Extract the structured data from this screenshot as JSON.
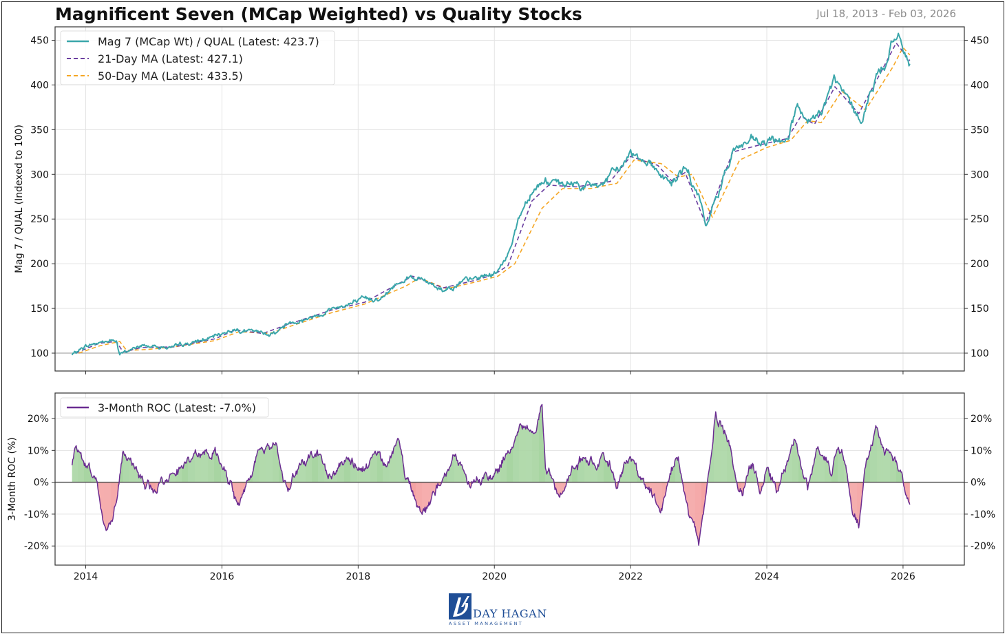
{
  "header": {
    "title": "Magnificent Seven (MCap Weighted) vs Quality Stocks",
    "date_range": "Jul 18, 2013 - Feb 03, 2026"
  },
  "logo": {
    "name": "DAY HAGAN",
    "subtitle": "ASSET MANAGEMENT"
  },
  "colors": {
    "ratio": "#3aa6aa",
    "ma21": "#6b3fa0",
    "ma50": "#f5a623",
    "roc": "#6a2c91",
    "roc_pos_fill": "#a8d5a2",
    "roc_neg_fill": "#f4a3a3",
    "grid": "#e3e3e3"
  },
  "chart_data": [
    {
      "type": "line",
      "ylabel": "Mag 7 / QUAL (Indexed to 100)",
      "ylim": [
        80,
        465
      ],
      "yticks": [
        100,
        150,
        200,
        250,
        300,
        350,
        400,
        450
      ],
      "xlim": [
        2013.55,
        2026.9
      ],
      "xticks": [
        2014,
        2016,
        2018,
        2020,
        2022,
        2024,
        2026
      ],
      "grid": true,
      "legend_position": "top-left",
      "reference_line": 100,
      "series": [
        {
          "name": "Mag 7 (MCap Wt) / QUAL (Latest: 423.7)",
          "style": "solid",
          "x": [
            2013.8,
            2014.0,
            2014.2,
            2014.45,
            2014.5,
            2014.55,
            2014.8,
            2015.0,
            2015.3,
            2015.6,
            2015.9,
            2016.15,
            2016.35,
            2016.55,
            2016.75,
            2017.0,
            2017.3,
            2017.6,
            2017.85,
            2018.1,
            2018.4,
            2018.6,
            2018.75,
            2019.0,
            2019.25,
            2019.5,
            2019.75,
            2020.0,
            2020.15,
            2020.35,
            2020.55,
            2020.75,
            2020.95,
            2021.2,
            2021.45,
            2021.7,
            2021.9,
            2022.0,
            2022.2,
            2022.4,
            2022.6,
            2022.8,
            2023.0,
            2023.1,
            2023.3,
            2023.5,
            2023.7,
            2023.9,
            2024.1,
            2024.3,
            2024.45,
            2024.6,
            2024.8,
            2025.0,
            2025.15,
            2025.35,
            2025.55,
            2025.75,
            2025.85,
            2026.0,
            2026.1
          ],
          "y": [
            98,
            108,
            112,
            114,
            98,
            100,
            108,
            108,
            106,
            112,
            118,
            127,
            125,
            122,
            122,
            135,
            140,
            150,
            155,
            158,
            165,
            180,
            188,
            180,
            172,
            178,
            183,
            190,
            200,
            250,
            285,
            295,
            285,
            290,
            285,
            295,
            312,
            325,
            320,
            305,
            290,
            305,
            275,
            240,
            280,
            330,
            335,
            332,
            335,
            342,
            375,
            350,
            368,
            405,
            385,
            360,
            395,
            430,
            455,
            440,
            423.7
          ]
        },
        {
          "name": "21-Day MA (Latest: 427.1)",
          "style": "dashed",
          "x": [
            2013.85,
            2014.2,
            2014.45,
            2014.55,
            2014.8,
            2015.3,
            2015.9,
            2016.2,
            2016.6,
            2017.0,
            2017.6,
            2018.1,
            2018.6,
            2018.8,
            2019.25,
            2019.75,
            2020.0,
            2020.2,
            2020.55,
            2020.8,
            2021.2,
            2021.7,
            2022.0,
            2022.4,
            2022.6,
            2022.8,
            2023.1,
            2023.5,
            2023.9,
            2024.3,
            2024.5,
            2024.7,
            2025.0,
            2025.35,
            2025.75,
            2025.9,
            2026.1
          ],
          "y": [
            100,
            111,
            113,
            101,
            106,
            107,
            116,
            126,
            122,
            133,
            148,
            157,
            178,
            186,
            173,
            182,
            188,
            198,
            270,
            288,
            286,
            292,
            320,
            310,
            293,
            302,
            245,
            325,
            333,
            340,
            365,
            356,
            398,
            368,
            425,
            447,
            427.1
          ]
        },
        {
          "name": "50-Day MA (Latest: 433.5)",
          "style": "dashed",
          "x": [
            2013.9,
            2014.2,
            2014.5,
            2014.6,
            2014.9,
            2015.3,
            2015.9,
            2016.25,
            2016.7,
            2017.0,
            2017.6,
            2018.1,
            2018.7,
            2018.9,
            2019.3,
            2019.75,
            2020.05,
            2020.3,
            2020.7,
            2021.0,
            2021.4,
            2021.8,
            2022.05,
            2022.45,
            2022.7,
            2022.9,
            2023.2,
            2023.6,
            2024.0,
            2024.35,
            2024.6,
            2024.8,
            2025.1,
            2025.45,
            2025.85,
            2026.0,
            2026.1
          ],
          "y": [
            100,
            108,
            113,
            103,
            104,
            107,
            114,
            124,
            122,
            130,
            145,
            155,
            175,
            184,
            172,
            180,
            186,
            200,
            262,
            284,
            284,
            290,
            316,
            312,
            297,
            300,
            252,
            316,
            330,
            338,
            360,
            358,
            393,
            372,
            420,
            442,
            433.5
          ]
        }
      ]
    },
    {
      "type": "area",
      "ylabel": "3-Month ROC (%)",
      "ylim": [
        -26,
        28
      ],
      "yticks": [
        -20,
        -10,
        0,
        10,
        20
      ],
      "ytick_labels": [
        "-20%",
        "-10%",
        "0%",
        "10%",
        "20%"
      ],
      "xlim": [
        2013.55,
        2026.9
      ],
      "xticks": [
        2014,
        2016,
        2018,
        2020,
        2022,
        2024,
        2026
      ],
      "grid": true,
      "legend_position": "top-left",
      "reference_line": 0,
      "series": [
        {
          "name": "3-Month ROC (Latest: -7.0%)",
          "x": [
            2013.8,
            2013.85,
            2013.95,
            2014.05,
            2014.15,
            2014.25,
            2014.3,
            2014.4,
            2014.45,
            2014.55,
            2014.65,
            2014.8,
            2015.0,
            2015.1,
            2015.3,
            2015.5,
            2015.7,
            2015.9,
            2016.05,
            2016.15,
            2016.25,
            2016.35,
            2016.5,
            2016.6,
            2016.8,
            2016.9,
            2017.0,
            2017.15,
            2017.4,
            2017.55,
            2017.7,
            2017.85,
            2018.0,
            2018.15,
            2018.3,
            2018.45,
            2018.6,
            2018.7,
            2018.8,
            2018.9,
            2019.0,
            2019.15,
            2019.3,
            2019.4,
            2019.55,
            2019.65,
            2019.8,
            2020.0,
            2020.15,
            2020.25,
            2020.35,
            2020.45,
            2020.6,
            2020.7,
            2020.75,
            2020.85,
            2020.95,
            2021.1,
            2021.25,
            2021.4,
            2021.55,
            2021.7,
            2021.8,
            2021.9,
            2022.0,
            2022.1,
            2022.2,
            2022.35,
            2022.45,
            2022.6,
            2022.7,
            2022.8,
            2022.85,
            2022.95,
            2023.0,
            2023.1,
            2023.2,
            2023.25,
            2023.35,
            2023.45,
            2023.55,
            2023.65,
            2023.8,
            2023.9,
            2024.0,
            2024.15,
            2024.3,
            2024.4,
            2024.5,
            2024.6,
            2024.75,
            2024.85,
            2024.95,
            2025.05,
            2025.15,
            2025.25,
            2025.35,
            2025.45,
            2025.55,
            2025.6,
            2025.7,
            2025.8,
            2025.9,
            2026.0,
            2026.1
          ],
          "y": [
            5,
            12,
            8,
            6,
            1,
            -12,
            -15,
            -10,
            -5,
            10,
            8,
            2,
            -4,
            0,
            4,
            6,
            8,
            11,
            5,
            -2,
            -7,
            -2,
            8,
            8,
            13,
            2,
            -2,
            6,
            10,
            2,
            3,
            7,
            4,
            5,
            8,
            6,
            13,
            2,
            -2,
            -8,
            -8,
            -2,
            4,
            8,
            4,
            0,
            2,
            2,
            8,
            12,
            16,
            18,
            16,
            26,
            6,
            2,
            -4,
            2,
            6,
            5,
            8,
            4,
            0,
            6,
            8,
            2,
            -2,
            -6,
            -10,
            4,
            8,
            -2,
            -8,
            -14,
            -20,
            -6,
            10,
            22,
            18,
            14,
            0,
            -2,
            6,
            -2,
            6,
            -2,
            8,
            14,
            4,
            -2,
            12,
            8,
            4,
            12,
            8,
            -6,
            -12,
            6,
            12,
            16,
            10,
            8,
            6,
            1,
            -7.0
          ]
        }
      ]
    }
  ]
}
